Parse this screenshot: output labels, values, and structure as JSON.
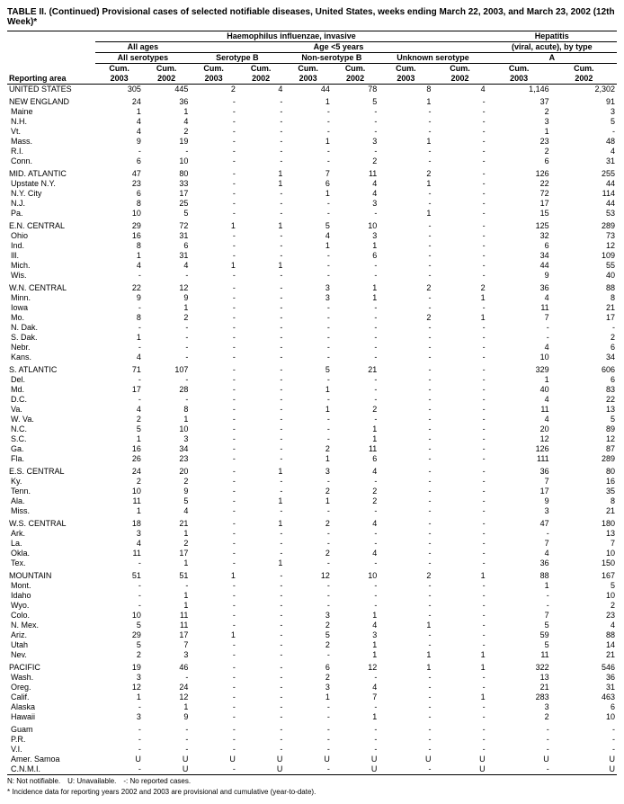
{
  "title": "TABLE II. (Continued) Provisional cases of selected notifiable diseases, United States, weeks ending March 22, 2003, and March 23, 2002 (12th Week)*",
  "disease_group_1": "Haemophilus influenzae, invasive",
  "disease_group_2": "Hepatitis",
  "age_group": "Age <5 years",
  "serogroups": {
    "all_ages": "All ages",
    "all_serotypes": "All serotypes",
    "serotype_b": "Serotype B",
    "non_serotype_b": "Non-serotype B",
    "unknown": "Unknown serotype",
    "viral": "(viral, acute), by type",
    "a": "A"
  },
  "col_labels": {
    "cum2003": "Cum.\n2003",
    "cum2002": "Cum.\n2002"
  },
  "reporting_area_label": "Reporting area",
  "footnotes": {
    "line1": "N: Not notifiable. U: Unavailable. -: No reported cases.",
    "line2": "* Incidence data for reporting years 2002 and 2003 are provisional and cumulative (year-to-date)."
  },
  "columns": [
    "area",
    "aa03",
    "aa02",
    "sb03",
    "sb02",
    "nsb03",
    "nsb02",
    "u03",
    "u02",
    "hepa03",
    "hepa02"
  ],
  "groups": [
    {
      "region": [
        "UNITED STATES",
        "305",
        "445",
        "2",
        "4",
        "44",
        "78",
        "8",
        "4",
        "1,146",
        "2,302"
      ],
      "states": []
    },
    {
      "region": [
        "NEW ENGLAND",
        "24",
        "36",
        "-",
        "-",
        "1",
        "5",
        "1",
        "-",
        "37",
        "91"
      ],
      "states": [
        [
          "Maine",
          "1",
          "1",
          "-",
          "-",
          "-",
          "-",
          "-",
          "-",
          "2",
          "3"
        ],
        [
          "N.H.",
          "4",
          "4",
          "-",
          "-",
          "-",
          "-",
          "-",
          "-",
          "3",
          "5"
        ],
        [
          "Vt.",
          "4",
          "2",
          "-",
          "-",
          "-",
          "-",
          "-",
          "-",
          "1",
          "-"
        ],
        [
          "Mass.",
          "9",
          "19",
          "-",
          "-",
          "1",
          "3",
          "1",
          "-",
          "23",
          "48"
        ],
        [
          "R.I.",
          "-",
          "-",
          "-",
          "-",
          "-",
          "-",
          "-",
          "-",
          "2",
          "4"
        ],
        [
          "Conn.",
          "6",
          "10",
          "-",
          "-",
          "-",
          "2",
          "-",
          "-",
          "6",
          "31"
        ]
      ]
    },
    {
      "region": [
        "MID. ATLANTIC",
        "47",
        "80",
        "-",
        "1",
        "7",
        "11",
        "2",
        "-",
        "126",
        "255"
      ],
      "states": [
        [
          "Upstate N.Y.",
          "23",
          "33",
          "-",
          "1",
          "6",
          "4",
          "1",
          "-",
          "22",
          "44"
        ],
        [
          "N.Y. City",
          "6",
          "17",
          "-",
          "-",
          "1",
          "4",
          "-",
          "-",
          "72",
          "114"
        ],
        [
          "N.J.",
          "8",
          "25",
          "-",
          "-",
          "-",
          "3",
          "-",
          "-",
          "17",
          "44"
        ],
        [
          "Pa.",
          "10",
          "5",
          "-",
          "-",
          "-",
          "-",
          "1",
          "-",
          "15",
          "53"
        ]
      ]
    },
    {
      "region": [
        "E.N. CENTRAL",
        "29",
        "72",
        "1",
        "1",
        "5",
        "10",
        "-",
        "-",
        "125",
        "289"
      ],
      "states": [
        [
          "Ohio",
          "16",
          "31",
          "-",
          "-",
          "4",
          "3",
          "-",
          "-",
          "32",
          "73"
        ],
        [
          "Ind.",
          "8",
          "6",
          "-",
          "-",
          "1",
          "1",
          "-",
          "-",
          "6",
          "12"
        ],
        [
          "Ill.",
          "1",
          "31",
          "-",
          "-",
          "-",
          "6",
          "-",
          "-",
          "34",
          "109"
        ],
        [
          "Mich.",
          "4",
          "4",
          "1",
          "1",
          "-",
          "-",
          "-",
          "-",
          "44",
          "55"
        ],
        [
          "Wis.",
          "-",
          "-",
          "-",
          "-",
          "-",
          "-",
          "-",
          "-",
          "9",
          "40"
        ]
      ]
    },
    {
      "region": [
        "W.N. CENTRAL",
        "22",
        "12",
        "-",
        "-",
        "3",
        "1",
        "2",
        "2",
        "36",
        "88"
      ],
      "states": [
        [
          "Minn.",
          "9",
          "9",
          "-",
          "-",
          "3",
          "1",
          "-",
          "1",
          "4",
          "8"
        ],
        [
          "Iowa",
          "-",
          "1",
          "-",
          "-",
          "-",
          "-",
          "-",
          "-",
          "11",
          "21"
        ],
        [
          "Mo.",
          "8",
          "2",
          "-",
          "-",
          "-",
          "-",
          "2",
          "1",
          "7",
          "17"
        ],
        [
          "N. Dak.",
          "-",
          "-",
          "-",
          "-",
          "-",
          "-",
          "-",
          "-",
          "-",
          "-"
        ],
        [
          "S. Dak.",
          "1",
          "-",
          "-",
          "-",
          "-",
          "-",
          "-",
          "-",
          "-",
          "2"
        ],
        [
          "Nebr.",
          "-",
          "-",
          "-",
          "-",
          "-",
          "-",
          "-",
          "-",
          "4",
          "6"
        ],
        [
          "Kans.",
          "4",
          "-",
          "-",
          "-",
          "-",
          "-",
          "-",
          "-",
          "10",
          "34"
        ]
      ]
    },
    {
      "region": [
        "S. ATLANTIC",
        "71",
        "107",
        "-",
        "-",
        "5",
        "21",
        "-",
        "-",
        "329",
        "606"
      ],
      "states": [
        [
          "Del.",
          "-",
          "-",
          "-",
          "-",
          "-",
          "-",
          "-",
          "-",
          "1",
          "6"
        ],
        [
          "Md.",
          "17",
          "28",
          "-",
          "-",
          "1",
          "-",
          "-",
          "-",
          "40",
          "83"
        ],
        [
          "D.C.",
          "-",
          "-",
          "-",
          "-",
          "-",
          "-",
          "-",
          "-",
          "4",
          "22"
        ],
        [
          "Va.",
          "4",
          "8",
          "-",
          "-",
          "1",
          "2",
          "-",
          "-",
          "11",
          "13"
        ],
        [
          "W. Va.",
          "2",
          "1",
          "-",
          "-",
          "-",
          "-",
          "-",
          "-",
          "4",
          "5"
        ],
        [
          "N.C.",
          "5",
          "10",
          "-",
          "-",
          "-",
          "1",
          "-",
          "-",
          "20",
          "89"
        ],
        [
          "S.C.",
          "1",
          "3",
          "-",
          "-",
          "-",
          "1",
          "-",
          "-",
          "12",
          "12"
        ],
        [
          "Ga.",
          "16",
          "34",
          "-",
          "-",
          "2",
          "11",
          "-",
          "-",
          "126",
          "87"
        ],
        [
          "Fla.",
          "26",
          "23",
          "-",
          "-",
          "1",
          "6",
          "-",
          "-",
          "111",
          "289"
        ]
      ]
    },
    {
      "region": [
        "E.S. CENTRAL",
        "24",
        "20",
        "-",
        "1",
        "3",
        "4",
        "-",
        "-",
        "36",
        "80"
      ],
      "states": [
        [
          "Ky.",
          "2",
          "2",
          "-",
          "-",
          "-",
          "-",
          "-",
          "-",
          "7",
          "16"
        ],
        [
          "Tenn.",
          "10",
          "9",
          "-",
          "-",
          "2",
          "2",
          "-",
          "-",
          "17",
          "35"
        ],
        [
          "Ala.",
          "11",
          "5",
          "-",
          "1",
          "1",
          "2",
          "-",
          "-",
          "9",
          "8"
        ],
        [
          "Miss.",
          "1",
          "4",
          "-",
          "-",
          "-",
          "-",
          "-",
          "-",
          "3",
          "21"
        ]
      ]
    },
    {
      "region": [
        "W.S. CENTRAL",
        "18",
        "21",
        "-",
        "1",
        "2",
        "4",
        "-",
        "-",
        "47",
        "180"
      ],
      "states": [
        [
          "Ark.",
          "3",
          "1",
          "-",
          "-",
          "-",
          "-",
          "-",
          "-",
          "-",
          "13"
        ],
        [
          "La.",
          "4",
          "2",
          "-",
          "-",
          "-",
          "-",
          "-",
          "-",
          "7",
          "7"
        ],
        [
          "Okla.",
          "11",
          "17",
          "-",
          "-",
          "2",
          "4",
          "-",
          "-",
          "4",
          "10"
        ],
        [
          "Tex.",
          "-",
          "1",
          "-",
          "1",
          "-",
          "-",
          "-",
          "-",
          "36",
          "150"
        ]
      ]
    },
    {
      "region": [
        "MOUNTAIN",
        "51",
        "51",
        "1",
        "-",
        "12",
        "10",
        "2",
        "1",
        "88",
        "167"
      ],
      "states": [
        [
          "Mont.",
          "-",
          "-",
          "-",
          "-",
          "-",
          "-",
          "-",
          "-",
          "1",
          "5"
        ],
        [
          "Idaho",
          "-",
          "1",
          "-",
          "-",
          "-",
          "-",
          "-",
          "-",
          "-",
          "10"
        ],
        [
          "Wyo.",
          "-",
          "1",
          "-",
          "-",
          "-",
          "-",
          "-",
          "-",
          "-",
          "2"
        ],
        [
          "Colo.",
          "10",
          "11",
          "-",
          "-",
          "3",
          "1",
          "-",
          "-",
          "7",
          "23"
        ],
        [
          "N. Mex.",
          "5",
          "11",
          "-",
          "-",
          "2",
          "4",
          "1",
          "-",
          "5",
          "4"
        ],
        [
          "Ariz.",
          "29",
          "17",
          "1",
          "-",
          "5",
          "3",
          "-",
          "-",
          "59",
          "88"
        ],
        [
          "Utah",
          "5",
          "7",
          "-",
          "-",
          "2",
          "1",
          "-",
          "-",
          "5",
          "14"
        ],
        [
          "Nev.",
          "2",
          "3",
          "-",
          "-",
          "-",
          "1",
          "1",
          "1",
          "11",
          "21"
        ]
      ]
    },
    {
      "region": [
        "PACIFIC",
        "19",
        "46",
        "-",
        "-",
        "6",
        "12",
        "1",
        "1",
        "322",
        "546"
      ],
      "states": [
        [
          "Wash.",
          "3",
          "-",
          "-",
          "-",
          "2",
          "-",
          "-",
          "-",
          "13",
          "36"
        ],
        [
          "Oreg.",
          "12",
          "24",
          "-",
          "-",
          "3",
          "4",
          "-",
          "-",
          "21",
          "31"
        ],
        [
          "Calif.",
          "1",
          "12",
          "-",
          "-",
          "1",
          "7",
          "-",
          "1",
          "283",
          "463"
        ],
        [
          "Alaska",
          "-",
          "1",
          "-",
          "-",
          "-",
          "-",
          "-",
          "-",
          "3",
          "6"
        ],
        [
          "Hawaii",
          "3",
          "9",
          "-",
          "-",
          "-",
          "1",
          "-",
          "-",
          "2",
          "10"
        ]
      ]
    },
    {
      "region": null,
      "states": [
        [
          "Guam",
          "-",
          "-",
          "-",
          "-",
          "-",
          "-",
          "-",
          "-",
          "-",
          "-"
        ],
        [
          "P.R.",
          "-",
          "-",
          "-",
          "-",
          "-",
          "-",
          "-",
          "-",
          "-",
          "-"
        ],
        [
          "V.I.",
          "-",
          "-",
          "-",
          "-",
          "-",
          "-",
          "-",
          "-",
          "-",
          "-"
        ],
        [
          "Amer. Samoa",
          "U",
          "U",
          "U",
          "U",
          "U",
          "U",
          "U",
          "U",
          "U",
          "U"
        ],
        [
          "C.N.M.I.",
          "-",
          "U",
          "-",
          "U",
          "-",
          "U",
          "-",
          "U",
          "-",
          "U"
        ]
      ]
    }
  ]
}
